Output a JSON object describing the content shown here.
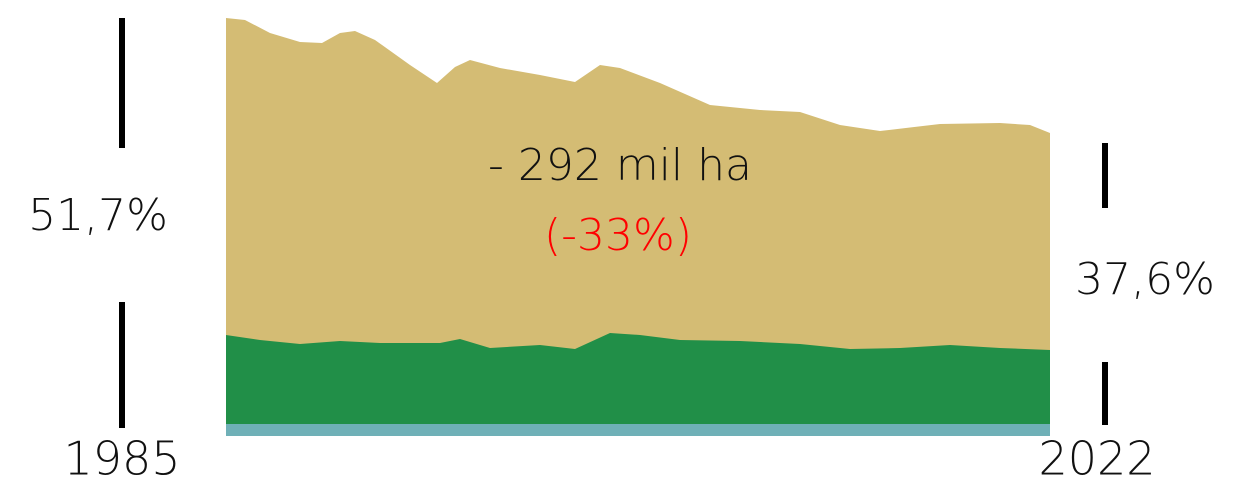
{
  "chart_data": {
    "type": "area",
    "start_label": "1985",
    "end_label": "2022",
    "start_share": "51,7%",
    "end_share": "37,6%",
    "change": "- 292 mil ha",
    "change_pct": "(-33%)"
  }
}
